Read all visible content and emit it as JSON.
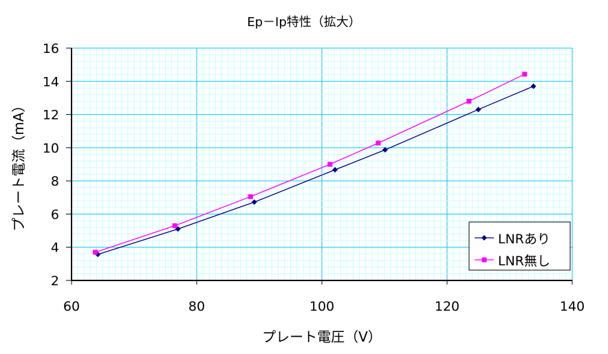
{
  "chart_data": {
    "type": "line",
    "title": "Ep－Ip特性（拡大）",
    "xlabel": "プレート電圧（V）",
    "ylabel": "プレート電流（mA）",
    "xlim": [
      60,
      140
    ],
    "ylim": [
      2,
      16
    ],
    "xticks": [
      60,
      80,
      100,
      120,
      140
    ],
    "yticks": [
      2,
      4,
      6,
      8,
      10,
      12,
      14,
      16
    ],
    "grid": true,
    "legend_position": "bottom-right",
    "series": [
      {
        "name": "LNRあり",
        "color": "#000080",
        "marker": "diamond",
        "x": [
          64.2,
          77.0,
          89.2,
          102.1,
          110.1,
          125.0,
          133.8
        ],
        "y": [
          3.57,
          5.1,
          6.72,
          8.67,
          9.87,
          12.3,
          13.7
        ]
      },
      {
        "name": "LNR無し",
        "color": "#FF00FF",
        "marker": "square",
        "x": [
          63.8,
          76.5,
          88.6,
          101.3,
          109.0,
          123.5,
          132.4
        ],
        "y": [
          3.7,
          5.3,
          7.05,
          9.0,
          10.28,
          12.8,
          14.43
        ]
      }
    ]
  }
}
